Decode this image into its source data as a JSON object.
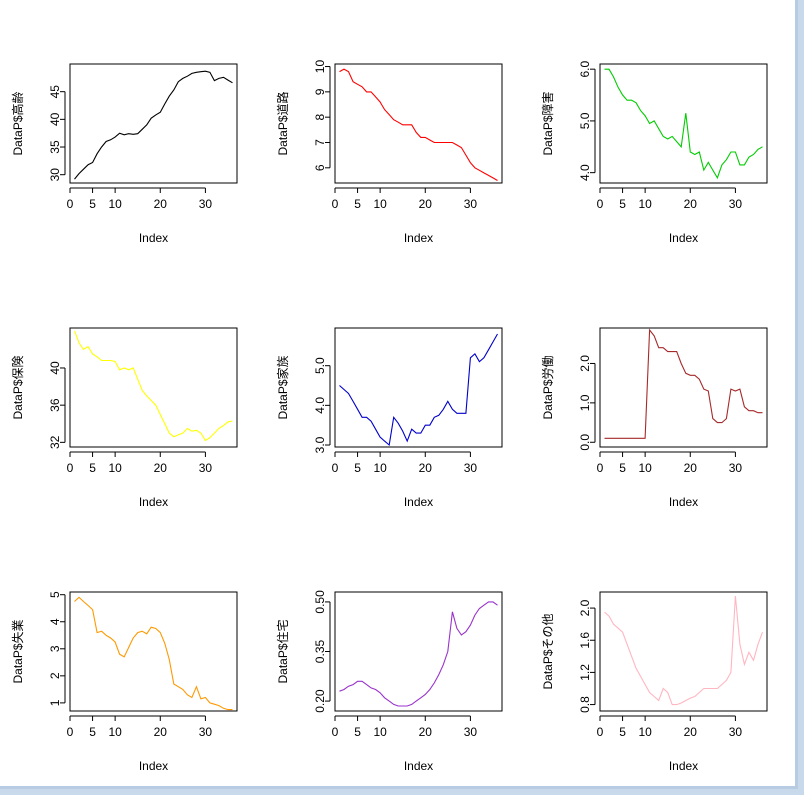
{
  "chart_data": [
    {
      "type": "line",
      "ylabel": "DataP$高齢",
      "xlabel": "Index",
      "color": "#000000",
      "xlim": [
        0,
        37
      ],
      "ylim": [
        28.5,
        50
      ],
      "xticks": [
        0,
        5,
        10,
        20,
        30
      ],
      "yticks": [
        30,
        35,
        40,
        45
      ],
      "x": [
        1,
        2,
        3,
        4,
        5,
        6,
        7,
        8,
        9,
        10,
        11,
        12,
        13,
        14,
        15,
        16,
        17,
        18,
        19,
        20,
        21,
        22,
        23,
        24,
        25,
        26,
        27,
        28,
        29,
        30,
        31,
        32,
        33,
        34,
        35,
        36
      ],
      "y": [
        29.2,
        30.2,
        31.0,
        31.8,
        32.2,
        33.8,
        35.0,
        36.0,
        36.3,
        36.8,
        37.5,
        37.2,
        37.4,
        37.3,
        37.4,
        38.2,
        39.0,
        40.2,
        40.8,
        41.3,
        42.8,
        44.2,
        45.3,
        46.8,
        47.4,
        47.8,
        48.3,
        48.5,
        48.6,
        48.7,
        48.5,
        47.0,
        47.4,
        47.6,
        47.1,
        46.6
      ]
    },
    {
      "type": "line",
      "ylabel": "DataP$道路",
      "xlabel": "Index",
      "color": "#ff0000",
      "xlim": [
        0,
        37
      ],
      "ylim": [
        5.4,
        10.1
      ],
      "xticks": [
        0,
        5,
        10,
        20,
        30
      ],
      "yticks": [
        6,
        7,
        8,
        9,
        10
      ],
      "x": [
        1,
        2,
        3,
        4,
        5,
        6,
        7,
        8,
        9,
        10,
        11,
        12,
        13,
        14,
        15,
        16,
        17,
        18,
        19,
        20,
        21,
        22,
        23,
        24,
        25,
        26,
        27,
        28,
        29,
        30,
        31,
        32,
        33,
        34,
        35,
        36
      ],
      "y": [
        9.8,
        9.9,
        9.8,
        9.4,
        9.3,
        9.2,
        9.0,
        9.0,
        8.8,
        8.6,
        8.3,
        8.1,
        7.9,
        7.8,
        7.7,
        7.7,
        7.7,
        7.4,
        7.2,
        7.2,
        7.1,
        7.0,
        7.0,
        7.0,
        7.0,
        7.0,
        6.9,
        6.8,
        6.5,
        6.2,
        6.0,
        5.9,
        5.8,
        5.7,
        5.6,
        5.5
      ]
    },
    {
      "type": "line",
      "ylabel": "DataP$障害",
      "xlabel": "Index",
      "color": "#00cc00",
      "xlim": [
        0,
        37
      ],
      "ylim": [
        3.8,
        6.1
      ],
      "xticks": [
        0,
        5,
        10,
        20,
        30
      ],
      "yticks": [
        4.0,
        5.0,
        6.0
      ],
      "ytick_labels": [
        "4.0",
        "5.0",
        "6.0"
      ],
      "x": [
        1,
        2,
        3,
        4,
        5,
        6,
        7,
        8,
        9,
        10,
        11,
        12,
        13,
        14,
        15,
        16,
        17,
        18,
        19,
        20,
        21,
        22,
        23,
        24,
        25,
        26,
        27,
        28,
        29,
        30,
        31,
        32,
        33,
        34,
        35,
        36
      ],
      "y": [
        6.0,
        6.0,
        5.85,
        5.65,
        5.5,
        5.4,
        5.4,
        5.35,
        5.2,
        5.1,
        4.95,
        5.0,
        4.85,
        4.7,
        4.65,
        4.7,
        4.6,
        4.5,
        5.15,
        4.4,
        4.35,
        4.4,
        4.05,
        4.2,
        4.05,
        3.9,
        4.15,
        4.25,
        4.4,
        4.4,
        4.15,
        4.15,
        4.3,
        4.35,
        4.45,
        4.5
      ]
    },
    {
      "type": "line",
      "ylabel": "DataP$保険",
      "xlabel": "Index",
      "color": "#ffff00",
      "xlim": [
        0,
        37
      ],
      "ylim": [
        31.5,
        44.3
      ],
      "xticks": [
        0,
        5,
        10,
        20,
        30
      ],
      "yticks": [
        32,
        36,
        40
      ],
      "x": [
        1,
        2,
        3,
        4,
        5,
        6,
        7,
        8,
        9,
        10,
        11,
        12,
        13,
        14,
        15,
        16,
        17,
        18,
        19,
        20,
        21,
        22,
        23,
        24,
        25,
        26,
        27,
        28,
        29,
        30,
        31,
        32,
        33,
        34,
        35,
        36
      ],
      "y": [
        44.0,
        42.7,
        42.0,
        42.3,
        41.5,
        41.2,
        40.8,
        40.8,
        40.8,
        40.7,
        39.8,
        40.0,
        39.8,
        40.0,
        38.8,
        37.6,
        37.0,
        36.5,
        36.0,
        35.0,
        34.0,
        33.0,
        32.6,
        32.8,
        33.0,
        33.5,
        33.2,
        33.3,
        33.0,
        32.2,
        32.5,
        33.0,
        33.5,
        33.8,
        34.2,
        34.3
      ]
    },
    {
      "type": "line",
      "ylabel": "DataP$家族",
      "xlabel": "Index",
      "color": "#0000cc",
      "xlim": [
        0,
        37
      ],
      "ylim": [
        2.95,
        5.95
      ],
      "xticks": [
        0,
        5,
        10,
        20,
        30
      ],
      "yticks": [
        3.0,
        4.0,
        5.0
      ],
      "ytick_labels": [
        "3.0",
        "4.0",
        "5.0"
      ],
      "x": [
        1,
        2,
        3,
        4,
        5,
        6,
        7,
        8,
        9,
        10,
        11,
        12,
        13,
        14,
        15,
        16,
        17,
        18,
        19,
        20,
        21,
        22,
        23,
        24,
        25,
        26,
        27,
        28,
        29,
        30,
        31,
        32,
        33,
        34,
        35,
        36
      ],
      "y": [
        4.5,
        4.4,
        4.3,
        4.1,
        3.9,
        3.7,
        3.7,
        3.6,
        3.4,
        3.2,
        3.1,
        3.0,
        3.7,
        3.55,
        3.35,
        3.1,
        3.4,
        3.3,
        3.3,
        3.5,
        3.5,
        3.7,
        3.75,
        3.9,
        4.1,
        3.9,
        3.8,
        3.8,
        3.8,
        5.2,
        5.3,
        5.1,
        5.2,
        5.4,
        5.6,
        5.8
      ]
    },
    {
      "type": "line",
      "ylabel": "DataP$労働",
      "xlabel": "Index",
      "color": "#a52a2a",
      "xlim": [
        0,
        37
      ],
      "ylim": [
        -0.12,
        2.9
      ],
      "xticks": [
        0,
        5,
        10,
        20,
        30
      ],
      "yticks": [
        0.0,
        1.0,
        2.0
      ],
      "ytick_labels": [
        "0.0",
        "1.0",
        "2.0"
      ],
      "x": [
        1,
        2,
        3,
        4,
        5,
        6,
        7,
        8,
        9,
        10,
        11,
        12,
        13,
        14,
        15,
        16,
        17,
        18,
        19,
        20,
        21,
        22,
        23,
        24,
        25,
        26,
        27,
        28,
        29,
        30,
        31,
        32,
        33,
        34,
        35,
        36
      ],
      "y": [
        0.1,
        0.1,
        0.1,
        0.1,
        0.1,
        0.1,
        0.1,
        0.1,
        0.1,
        0.1,
        2.85,
        2.7,
        2.4,
        2.4,
        2.3,
        2.3,
        2.3,
        2.0,
        1.75,
        1.7,
        1.7,
        1.6,
        1.35,
        1.3,
        0.6,
        0.5,
        0.5,
        0.6,
        1.35,
        1.3,
        1.35,
        0.9,
        0.8,
        0.8,
        0.75,
        0.75
      ]
    },
    {
      "type": "line",
      "ylabel": "DataP$失業",
      "xlabel": "Index",
      "color": "#ff9900",
      "xlim": [
        0,
        37
      ],
      "ylim": [
        0.7,
        5.1
      ],
      "xticks": [
        0,
        5,
        10,
        20,
        30
      ],
      "yticks": [
        1,
        2,
        3,
        4,
        5
      ],
      "x": [
        1,
        2,
        3,
        4,
        5,
        6,
        7,
        8,
        9,
        10,
        11,
        12,
        13,
        14,
        15,
        16,
        17,
        18,
        19,
        20,
        21,
        22,
        23,
        24,
        25,
        26,
        27,
        28,
        29,
        30,
        31,
        32,
        33,
        34,
        35,
        36
      ],
      "y": [
        4.75,
        4.9,
        4.75,
        4.6,
        4.45,
        3.6,
        3.65,
        3.5,
        3.4,
        3.25,
        2.8,
        2.7,
        3.05,
        3.4,
        3.6,
        3.65,
        3.55,
        3.8,
        3.75,
        3.6,
        3.2,
        2.6,
        1.7,
        1.6,
        1.5,
        1.3,
        1.2,
        1.6,
        1.15,
        1.2,
        1.0,
        0.95,
        0.9,
        0.8,
        0.75,
        0.75
      ]
    },
    {
      "type": "line",
      "ylabel": "DataP$住宅",
      "xlabel": "Index",
      "color": "#9933cc",
      "xlim": [
        0,
        37
      ],
      "ylim": [
        0.17,
        0.53
      ],
      "xticks": [
        0,
        5,
        10,
        20,
        30
      ],
      "yticks": [
        0.2,
        0.35,
        0.5
      ],
      "ytick_labels": [
        "0.20",
        "0.35",
        "0.50"
      ],
      "x": [
        1,
        2,
        3,
        4,
        5,
        6,
        7,
        8,
        9,
        10,
        11,
        12,
        13,
        14,
        15,
        16,
        17,
        18,
        19,
        20,
        21,
        22,
        23,
        24,
        25,
        26,
        27,
        28,
        29,
        30,
        31,
        32,
        33,
        34,
        35,
        36
      ],
      "y": [
        0.23,
        0.235,
        0.245,
        0.25,
        0.26,
        0.26,
        0.25,
        0.24,
        0.235,
        0.225,
        0.21,
        0.2,
        0.19,
        0.185,
        0.185,
        0.185,
        0.19,
        0.2,
        0.21,
        0.22,
        0.235,
        0.255,
        0.28,
        0.31,
        0.35,
        0.47,
        0.42,
        0.4,
        0.41,
        0.43,
        0.46,
        0.48,
        0.49,
        0.5,
        0.5,
        0.49
      ]
    },
    {
      "type": "line",
      "ylabel": "DataP$その他",
      "xlabel": "Index",
      "color": "#ffb6c1",
      "xlim": [
        0,
        37
      ],
      "ylim": [
        0.72,
        2.2
      ],
      "xticks": [
        0,
        5,
        10,
        20,
        30
      ],
      "yticks": [
        0.8,
        1.2,
        1.6,
        2.0
      ],
      "ytick_labels": [
        "0.8",
        "1.2",
        "1.6",
        "2.0"
      ],
      "x": [
        1,
        2,
        3,
        4,
        5,
        6,
        7,
        8,
        9,
        10,
        11,
        12,
        13,
        14,
        15,
        16,
        17,
        18,
        19,
        20,
        21,
        22,
        23,
        24,
        25,
        26,
        27,
        28,
        29,
        30,
        31,
        32,
        33,
        34,
        35,
        36
      ],
      "y": [
        1.95,
        1.9,
        1.8,
        1.75,
        1.7,
        1.55,
        1.4,
        1.25,
        1.15,
        1.05,
        0.95,
        0.9,
        0.85,
        1.0,
        0.95,
        0.8,
        0.8,
        0.82,
        0.85,
        0.88,
        0.9,
        0.95,
        1.0,
        1.0,
        1.0,
        1.0,
        1.05,
        1.1,
        1.2,
        2.15,
        1.55,
        1.3,
        1.45,
        1.35,
        1.55,
        1.7
      ]
    }
  ]
}
